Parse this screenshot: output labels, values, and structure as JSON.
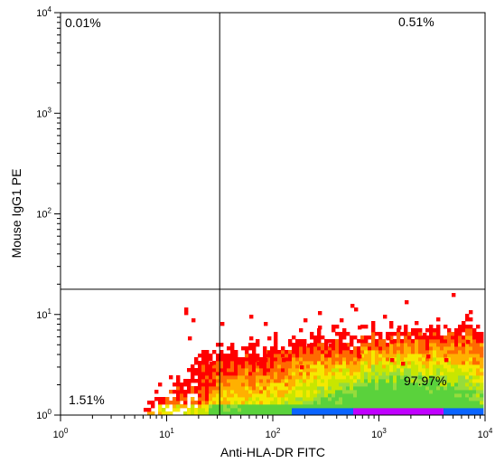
{
  "chart_data": {
    "type": "scatter",
    "plot_style": "density-dot-plot",
    "xlabel": "Anti-HLA-DR FITC",
    "ylabel": "Mouse IgG1 PE",
    "x_scale": "log",
    "y_scale": "log",
    "xlim": [
      1,
      10000
    ],
    "ylim": [
      1,
      10000
    ],
    "x_ticks": [
      {
        "base": "10",
        "exp": "0",
        "value": 1
      },
      {
        "base": "10",
        "exp": "1",
        "value": 10
      },
      {
        "base": "10",
        "exp": "2",
        "value": 100
      },
      {
        "base": "10",
        "exp": "3",
        "value": 1000
      },
      {
        "base": "10",
        "exp": "4",
        "value": 10000
      }
    ],
    "y_ticks": [
      {
        "base": "10",
        "exp": "0",
        "value": 1
      },
      {
        "base": "10",
        "exp": "1",
        "value": 10
      },
      {
        "base": "10",
        "exp": "2",
        "value": 100
      },
      {
        "base": "10",
        "exp": "3",
        "value": 1000
      },
      {
        "base": "10",
        "exp": "4",
        "value": 10000
      }
    ],
    "gate": {
      "x": 31.6,
      "y": 17.8
    },
    "quadrants": {
      "upper_left": "0.01%",
      "upper_right": "0.51%",
      "lower_left": "1.51%",
      "lower_right": "97.97%"
    },
    "density_colors": [
      "#ff0000",
      "#ff6a00",
      "#ffb000",
      "#f5e900",
      "#c8e600",
      "#96dc3c",
      "#5ad23c",
      "#0a64ff",
      "#c000ff"
    ],
    "population": {
      "x_range": [
        6,
        9500
      ],
      "y_range": [
        1,
        17.8
      ],
      "peak": {
        "x": 1500,
        "y": 1.25
      }
    }
  }
}
